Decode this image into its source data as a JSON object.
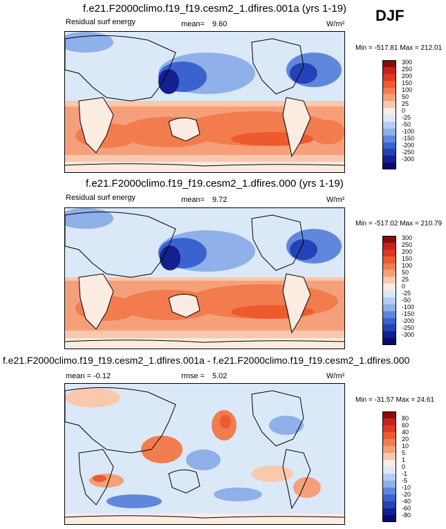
{
  "season": "DJF",
  "panels": [
    {
      "title": "f.e21.F2000climo.f19_f19.cesm2_1.dfires.001a (yrs 1-19)",
      "left_label": "Residual surf energy",
      "mid_label": "mean=",
      "mid_value": "9.60",
      "units": "W/m²",
      "minmax": "Min = -517.81 Max = 212.01",
      "levels": [
        "300",
        "250",
        "200",
        "150",
        "100",
        "50",
        "25",
        "0",
        "-25",
        "-50",
        "-100",
        "-150",
        "-200",
        "-250",
        "-300"
      ]
    },
    {
      "title": "f.e21.F2000climo.f19_f19.cesm2_1.dfires.000 (yrs 1-19)",
      "left_label": "Residual surf energy",
      "mid_label": "mean=",
      "mid_value": "9.72",
      "units": "W/m²",
      "minmax": "Min = -517.02 Max = 210.79",
      "levels": [
        "300",
        "250",
        "200",
        "150",
        "100",
        "50",
        "25",
        "0",
        "-25",
        "-50",
        "-100",
        "-150",
        "-200",
        "-250",
        "-300"
      ]
    },
    {
      "title": "f.e21.F2000climo.f19_f19.cesm2_1.dfires.001a - f.e21.F2000climo.f19_f19.cesm2_1.dfires.000",
      "left_label": "mean =",
      "left_value": "-0.12",
      "mid_label": "rmse =",
      "mid_value": "5.02",
      "units": "W/m²",
      "minmax": "Min = -31.57 Max = 24.61",
      "levels": [
        "80",
        "60",
        "40",
        "20",
        "10",
        "5",
        "1",
        "0",
        "-1",
        "-5",
        "-10",
        "-20",
        "-40",
        "-60",
        "-80"
      ]
    }
  ],
  "colors": {
    "scale": [
      "#8b0a0a",
      "#c8201e",
      "#e0391f",
      "#ec5a2e",
      "#f27c4d",
      "#f5a07a",
      "#f9c8ad",
      "#fcebe0",
      "#dbe8f8",
      "#b6cdf0",
      "#8fb0e8",
      "#5f88dc",
      "#3a63d0",
      "#2541b8",
      "#15208f",
      "#0a0a6e"
    ],
    "land_cool": "#d9e6f7",
    "deep_cool": "#3f5fd4"
  },
  "chart_data": [
    {
      "type": "heatmap",
      "title": "f.e21.F2000climo.f19_f19.cesm2_1.dfires.001a (yrs 1-19)",
      "variable": "Residual surf energy",
      "units": "W/m²",
      "mean": 9.6,
      "min": -517.81,
      "max": 212.01,
      "colorbar_levels": [
        300,
        250,
        200,
        150,
        100,
        50,
        25,
        0,
        -25,
        -50,
        -100,
        -150,
        -200,
        -250,
        -300
      ],
      "field_description": "tropical and southern oceans positive (50 to 150), northern oceans and NH land negative (-50 to -250)"
    },
    {
      "type": "heatmap",
      "title": "f.e21.F2000climo.f19_f19.cesm2_1.dfires.000 (yrs 1-19)",
      "variable": "Residual surf energy",
      "units": "W/m²",
      "mean": 9.72,
      "min": -517.02,
      "max": 210.79,
      "colorbar_levels": [
        300,
        250,
        200,
        150,
        100,
        50,
        25,
        0,
        -25,
        -50,
        -100,
        -150,
        -200,
        -250,
        -300
      ]
    },
    {
      "type": "heatmap",
      "title": "f.e21.F2000climo.f19_f19.cesm2_1.dfires.001a - f.e21.F2000climo.f19_f19.cesm2_1.dfires.000",
      "units": "W/m²",
      "mean": -0.12,
      "rmse": 5.02,
      "min": -31.57,
      "max": 24.61,
      "colorbar_levels": [
        80,
        60,
        40,
        20,
        10,
        5,
        1,
        0,
        -1,
        -5,
        -10,
        -20,
        -40,
        -60,
        -80
      ]
    }
  ]
}
